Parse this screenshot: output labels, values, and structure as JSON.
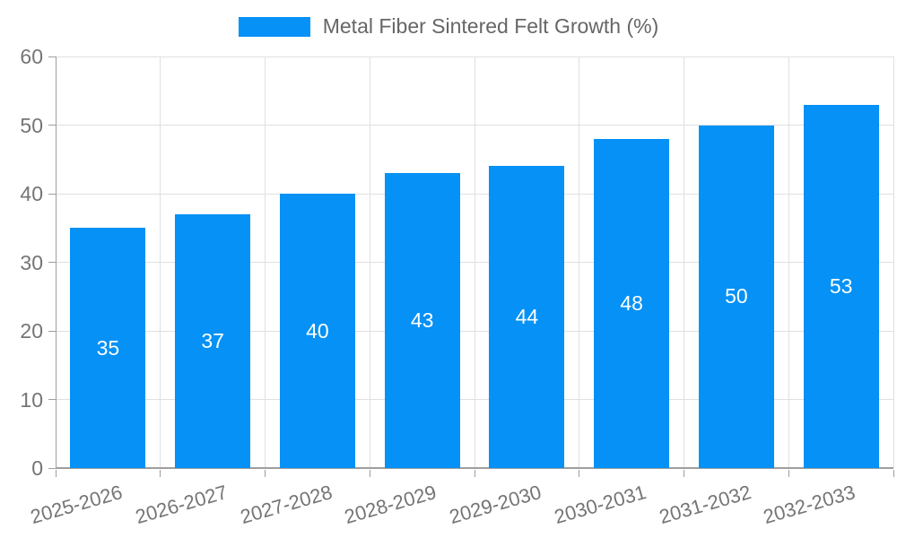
{
  "legend": {
    "label": "Metal Fiber Sintered Felt Growth (%)"
  },
  "chart_data": {
    "type": "bar",
    "title": "Metal Fiber Sintered Felt Growth (%)",
    "categories": [
      "2025-2026",
      "2026-2027",
      "2027-2028",
      "2028-2029",
      "2029-2030",
      "2030-2031",
      "2031-2032",
      "2032-2033"
    ],
    "series": [
      {
        "name": "Metal Fiber Sintered Felt Growth (%)",
        "values": [
          35,
          37,
          40,
          43,
          44,
          48,
          50,
          53
        ]
      }
    ],
    "xlabel": "",
    "ylabel": "",
    "ylim": [
      0,
      60
    ],
    "yticks": [
      0,
      10,
      20,
      30,
      40,
      50,
      60
    ],
    "grid": true,
    "legend_position": "top",
    "colors": {
      "bar": "#0591f5",
      "grid": "#e0e0e0",
      "axis": "#9e9e9e",
      "tick_text": "#757575",
      "legend_text": "#666666",
      "bar_label_text": "#ffffff"
    }
  }
}
